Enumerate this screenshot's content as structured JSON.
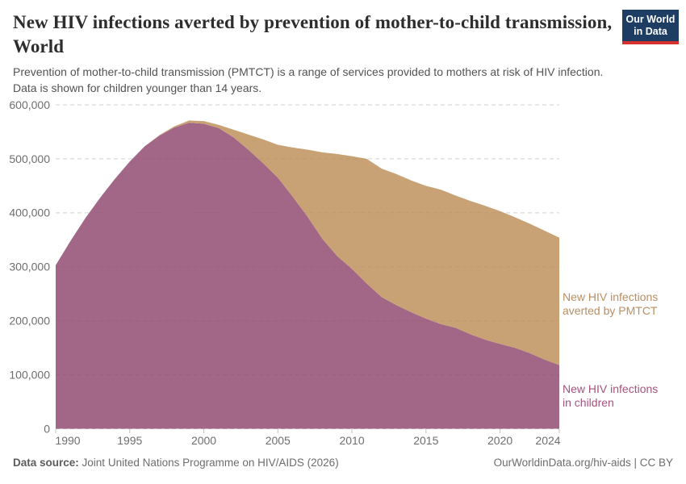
{
  "header": {
    "title": "New HIV infections averted by prevention of mother-to-child transmission, World",
    "subtitle_line1": "Prevention of mother-to-child transmission (PMTCT) is a range of services provided to mothers at risk of HIV infection.",
    "subtitle_line2": "Data is shown for children younger than 14 years.",
    "logo_line1": "Our World",
    "logo_line2": "in Data",
    "logo_bg_color": "#1d3d63",
    "logo_accent_color": "#d7312f"
  },
  "footer": {
    "source_label": "Data source:",
    "source_text": "Joint United Nations Programme on HIV/AIDS (2026)",
    "right_text": "OurWorldinData.org/hiv-aids | CC BY"
  },
  "chart_data": {
    "type": "area",
    "stacked": true,
    "title": "New HIV infections averted by prevention of mother-to-child transmission, World",
    "xlabel": "",
    "ylabel": "",
    "ylim": [
      0,
      600000
    ],
    "ytick_step": 100000,
    "grid": "dashed-horizontal",
    "legend_position": "right-of-plot",
    "x": [
      1990,
      1991,
      1992,
      1993,
      1994,
      1995,
      1996,
      1997,
      1998,
      1999,
      2000,
      2001,
      2002,
      2003,
      2004,
      2005,
      2006,
      2007,
      2008,
      2009,
      2010,
      2011,
      2012,
      2013,
      2014,
      2015,
      2016,
      2017,
      2018,
      2019,
      2020,
      2021,
      2022,
      2023,
      2024
    ],
    "xticks": [
      1990,
      1995,
      2000,
      2005,
      2010,
      2015,
      2020,
      2024
    ],
    "series": [
      {
        "name": "New HIV infections in children",
        "label_lines": [
          "New HIV infections",
          "in children"
        ],
        "color": "#a26786",
        "label_color": "#a5537e",
        "values": [
          303000,
          348000,
          390000,
          428000,
          463000,
          495000,
          523000,
          543000,
          558000,
          567000,
          565000,
          557000,
          540000,
          517000,
          492000,
          465000,
          430000,
          393000,
          352000,
          320000,
          296000,
          269000,
          244000,
          229000,
          216000,
          204000,
          194000,
          187000,
          175000,
          165000,
          157000,
          150000,
          140000,
          128000,
          118000
        ]
      },
      {
        "name": "New HIV infections averted by PMTCT",
        "label_lines": [
          "New HIV infections",
          "averted by PMTCT"
        ],
        "color": "#c8a274",
        "label_color": "#b98e63",
        "values": [
          0,
          0,
          0,
          0,
          0,
          0,
          0,
          1000,
          2000,
          4000,
          5000,
          6000,
          14000,
          28000,
          44000,
          61000,
          91000,
          124000,
          160000,
          189000,
          209000,
          231000,
          238000,
          243000,
          244000,
          246000,
          249000,
          245000,
          247000,
          248000,
          246000,
          242000,
          240000,
          239000,
          236000
        ]
      }
    ]
  }
}
